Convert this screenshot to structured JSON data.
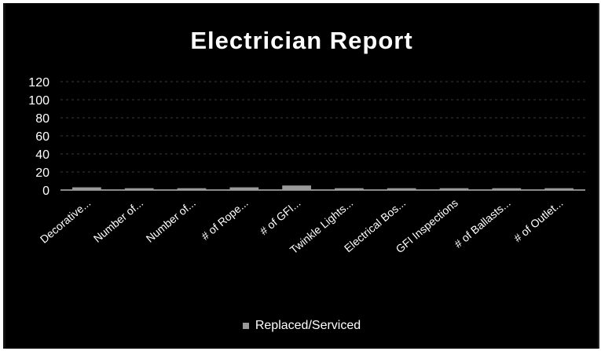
{
  "chart_data": {
    "type": "bar",
    "title": "Electrician Report",
    "categories": [
      "Decorative...",
      "Number of...",
      "Number of...",
      "# of Rope...",
      "# of GFI...",
      "Twinkle Lights...",
      "Electrical Bos...",
      "GFI Inspections",
      "# of Ballasts...",
      "# of Outlet..."
    ],
    "series": [
      {
        "name": "Replaced/Serviced",
        "values": [
          3,
          2,
          2,
          3,
          5,
          2,
          2,
          2,
          2,
          2
        ],
        "color": "#9a9a9a"
      }
    ],
    "yticks": [
      "0",
      "20",
      "40",
      "60",
      "80",
      "100",
      "120"
    ],
    "ylim": [
      0,
      120
    ],
    "grid": true,
    "legend": "bottom"
  }
}
